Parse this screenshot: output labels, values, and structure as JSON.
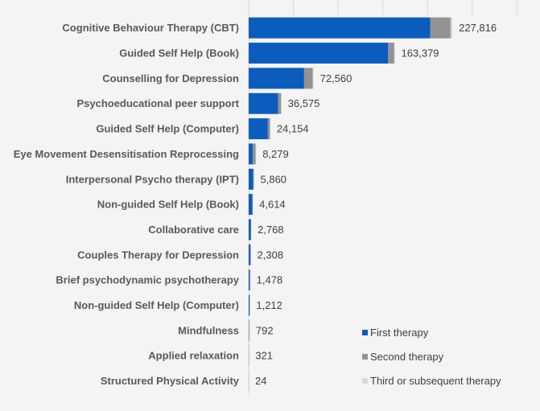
{
  "chart_data": {
    "type": "bar",
    "orientation": "horizontal",
    "stacked": true,
    "title": "",
    "xlabel": "",
    "ylabel": "",
    "xlim": [
      0,
      500000
    ],
    "grid": "vertical",
    "legend_position": "bottom-right",
    "categories": [
      "Cognitive Behaviour Therapy (CBT)",
      "Guided Self Help (Book)",
      "Counselling for Depression",
      "Psychoeducational peer support",
      "Guided Self Help (Computer)",
      "Eye Movement Desensitisation Reprocessing",
      "Interpersonal Psycho therapy (IPT)",
      "Non-guided Self Help (Book)",
      "Collaborative care",
      "Couples Therapy for Depression",
      "Brief psychodynamic psychotherapy",
      "Non-guided Self Help (Computer)",
      "Mindfulness",
      "Applied relaxation",
      "Structured Physical Activity"
    ],
    "totals": [
      "227,816",
      "163,379",
      "72,560",
      "36,575",
      "24,154",
      "8,279",
      "5,860",
      "4,614",
      "2,768",
      "2,308",
      "1,478",
      "1,212",
      "792",
      "321",
      "24"
    ],
    "series": [
      {
        "name": "First therapy",
        "color": "#0b5dbd",
        "values": [
          203000,
          156000,
          62000,
          33000,
          21500,
          4500,
          5000,
          4000,
          2500,
          2000,
          1300,
          1100,
          150,
          60,
          10
        ]
      },
      {
        "name": "Second therapy",
        "color": "#939393",
        "values": [
          22800,
          6800,
          9600,
          3300,
          2400,
          3400,
          700,
          500,
          200,
          250,
          150,
          90,
          540,
          200,
          10
        ]
      },
      {
        "name": "Third or subsequent therapy",
        "color": "#d9d9d9",
        "values": [
          2016,
          579,
          960,
          275,
          254,
          379,
          160,
          114,
          68,
          58,
          28,
          22,
          102,
          61,
          4
        ]
      }
    ]
  }
}
